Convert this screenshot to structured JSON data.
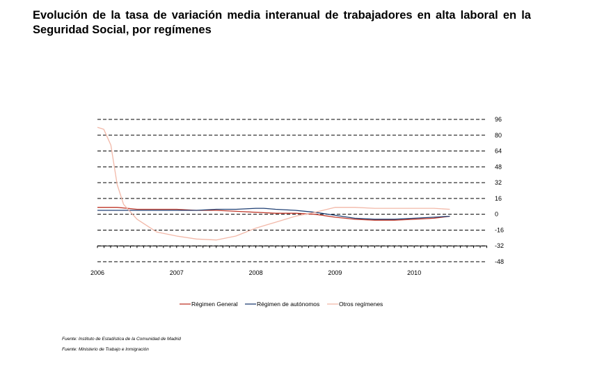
{
  "chart_data": {
    "type": "line",
    "title": "Evolución de la tasa de variación media interanual de trabajadores en alta laboral en la Seguridad Social, por  regímenes",
    "xlabel": "",
    "ylabel": "",
    "x_ticks": [
      "2006",
      "2007",
      "2008",
      "2009",
      "2010"
    ],
    "xlim": [
      2006.0,
      2010.92
    ],
    "y_ticks": [
      96,
      80,
      64,
      48,
      32,
      16,
      0,
      -16,
      -32,
      -48
    ],
    "ylim": [
      -48,
      96
    ],
    "grid": "horizontal dashed",
    "y_axis_side": "right",
    "legend_position": "bottom",
    "series": [
      {
        "name": "Régimen General",
        "color": "#c0392b",
        "style": "solid",
        "x": [
          2006.0,
          2006.25,
          2006.5,
          2006.75,
          2007.0,
          2007.25,
          2007.5,
          2007.75,
          2008.0,
          2008.25,
          2008.5,
          2008.75,
          2009.0,
          2009.25,
          2009.5,
          2009.75,
          2010.0,
          2010.25,
          2010.45
        ],
        "y": [
          7,
          7,
          5,
          5,
          5,
          4,
          4,
          3,
          2,
          1,
          1,
          0,
          -3,
          -5,
          -6,
          -6,
          -5,
          -4,
          -2
        ]
      },
      {
        "name": "Régimen de autónomos",
        "color": "#1f3f73",
        "style": "solid",
        "x": [
          2006.0,
          2006.25,
          2006.5,
          2006.75,
          2007.0,
          2007.25,
          2007.5,
          2007.75,
          2008.0,
          2008.1,
          2008.25,
          2008.5,
          2008.75,
          2009.0,
          2009.25,
          2009.5,
          2009.75,
          2010.0,
          2010.25,
          2010.45
        ],
        "y": [
          4,
          4,
          4,
          4,
          4,
          4,
          5,
          5,
          6,
          6,
          5,
          4,
          2,
          -1,
          -4,
          -5,
          -5,
          -4,
          -3,
          -2
        ]
      },
      {
        "name": "Otros regímenes",
        "color": "#f2b8a8",
        "style": "solid",
        "x": [
          2006.0,
          2006.08,
          2006.17,
          2006.25,
          2006.33,
          2006.5,
          2006.75,
          2007.0,
          2007.25,
          2007.5,
          2007.75,
          2008.0,
          2008.25,
          2008.5,
          2008.75,
          2009.0,
          2009.25,
          2009.5,
          2009.75,
          2010.0,
          2010.25,
          2010.45
        ],
        "y": [
          88,
          86,
          70,
          30,
          10,
          -5,
          -18,
          -22,
          -25,
          -26,
          -22,
          -14,
          -8,
          -2,
          2,
          7,
          7,
          6,
          6,
          6,
          6,
          5
        ]
      }
    ]
  },
  "sources": [
    "Fuente: Instituto de Estadística de la Comunidad de Madrid",
    "Fuente: Ministerio de Trabajo e Inmigración"
  ]
}
